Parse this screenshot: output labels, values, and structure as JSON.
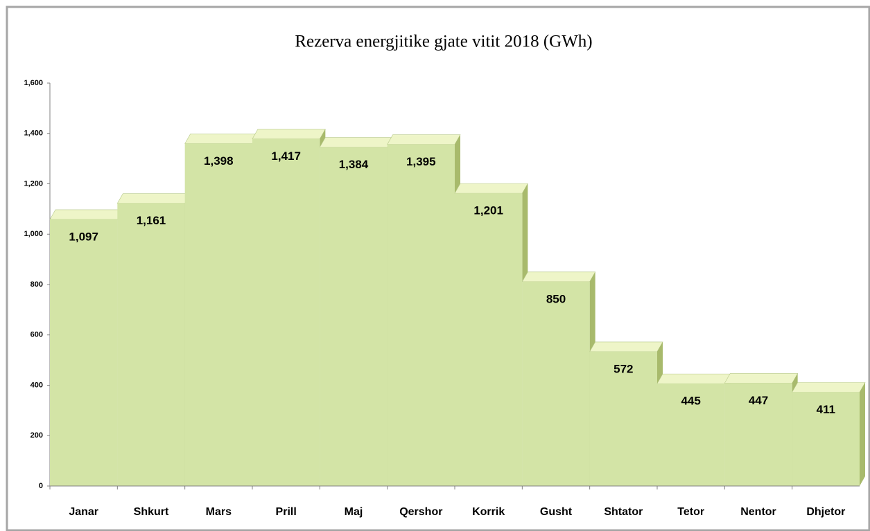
{
  "chart_data": {
    "type": "bar3d",
    "title": "Rezerva energjitike gjate vitit 2018  (GWh)",
    "categories": [
      "Janar",
      "Shkurt",
      "Mars",
      "Prill",
      "Maj",
      "Qershor",
      "Korrik",
      "Gusht",
      "Shtator",
      "Tetor",
      "Nentor",
      "Dhjetor"
    ],
    "values": [
      1097,
      1161,
      1398,
      1417,
      1384,
      1395,
      1201,
      850,
      572,
      445,
      447,
      411
    ],
    "value_labels": [
      "1,097",
      "1,161",
      "1,398",
      "1,417",
      "1,384",
      "1,395",
      "1,201",
      "850",
      "572",
      "445",
      "447",
      "411"
    ],
    "color": "#d3e4a6",
    "ylim": [
      0,
      1600
    ],
    "yticks": [
      0,
      200,
      400,
      600,
      800,
      {
        "value": 1000,
        "label": "1,000"
      },
      {
        "value": 1200,
        "label": "1,200"
      },
      {
        "value": 1400,
        "label": "1,400"
      },
      {
        "value": 1600,
        "label": "1,600"
      }
    ]
  }
}
